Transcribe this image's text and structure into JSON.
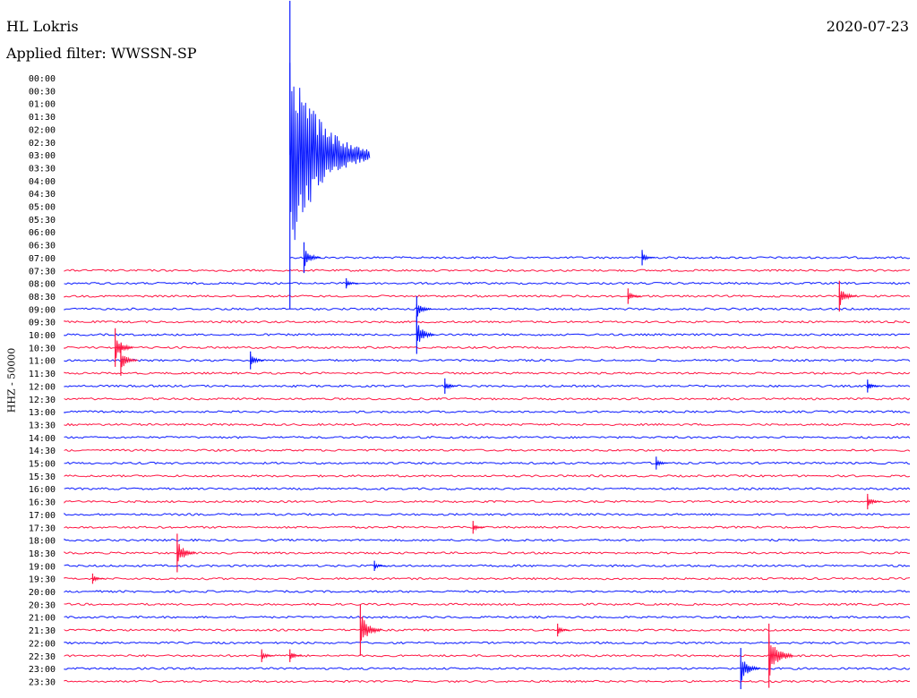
{
  "header": {
    "station": "HL Lokris",
    "date": "2020-07-23",
    "filter": "Applied filter: WWSSN-SP"
  },
  "axis": {
    "ylabel": "HHZ - 50000"
  },
  "colors": {
    "trace_a": "#ff1744",
    "trace_b": "#0a1aff"
  },
  "chart_data": {
    "type": "line",
    "time_labels": [
      "00:00",
      "00:30",
      "01:00",
      "01:30",
      "02:00",
      "02:30",
      "03:00",
      "03:30",
      "04:00",
      "04:30",
      "05:00",
      "05:30",
      "06:00",
      "06:30",
      "07:00",
      "07:30",
      "08:00",
      "08:30",
      "09:00",
      "09:30",
      "10:00",
      "10:30",
      "11:00",
      "11:30",
      "12:00",
      "12:30",
      "13:00",
      "13:30",
      "14:00",
      "14:30",
      "15:00",
      "15:30",
      "16:00",
      "16:30",
      "17:00",
      "17:30",
      "18:00",
      "18:30",
      "19:00",
      "19:30",
      "20:00",
      "20:30",
      "21:00",
      "21:30",
      "22:00",
      "22:30",
      "23:00",
      "23:30"
    ],
    "first_trace_label": "07:00",
    "events": [
      {
        "t": "03:00",
        "minute": 8,
        "amp": 12,
        "color": "b"
      },
      {
        "t": "07:00",
        "minute": 8.5,
        "amp": 1.2,
        "color": "b"
      },
      {
        "t": "07:00",
        "minute": 20.5,
        "amp": 0.6,
        "color": "b"
      },
      {
        "t": "08:00",
        "minute": 10,
        "amp": 0.4,
        "color": "b"
      },
      {
        "t": "08:30",
        "minute": 20,
        "amp": 0.6,
        "color": "a"
      },
      {
        "t": "08:30",
        "minute": 27.5,
        "amp": 1.2,
        "color": "a"
      },
      {
        "t": "09:00",
        "minute": 12.5,
        "amp": 1.0,
        "color": "b"
      },
      {
        "t": "10:00",
        "minute": 12.5,
        "amp": 1.5,
        "color": "b"
      },
      {
        "t": "10:30",
        "minute": 1.8,
        "amp": 1.5,
        "color": "a"
      },
      {
        "t": "11:00",
        "minute": 6.6,
        "amp": 0.7,
        "color": "b"
      },
      {
        "t": "11:00",
        "minute": 2.0,
        "amp": 1.2,
        "color": "a"
      },
      {
        "t": "12:00",
        "minute": 13.5,
        "amp": 0.6,
        "color": "b"
      },
      {
        "t": "12:00",
        "minute": 28.5,
        "amp": 0.5,
        "color": "b"
      },
      {
        "t": "15:00",
        "minute": 21,
        "amp": 0.5,
        "color": "b"
      },
      {
        "t": "16:30",
        "minute": 28.5,
        "amp": 0.6,
        "color": "a"
      },
      {
        "t": "17:30",
        "minute": 14.5,
        "amp": 0.5,
        "color": "a"
      },
      {
        "t": "18:30",
        "minute": 4.0,
        "amp": 1.5,
        "color": "a"
      },
      {
        "t": "19:00",
        "minute": 11.0,
        "amp": 0.4,
        "color": "b"
      },
      {
        "t": "19:30",
        "minute": 1.0,
        "amp": 0.4,
        "color": "a"
      },
      {
        "t": "21:30",
        "minute": 10.5,
        "amp": 2.0,
        "color": "a"
      },
      {
        "t": "21:30",
        "minute": 17.5,
        "amp": 0.5,
        "color": "a"
      },
      {
        "t": "22:30",
        "minute": 7.0,
        "amp": 0.5,
        "color": "a"
      },
      {
        "t": "22:30",
        "minute": 8.0,
        "amp": 0.5,
        "color": "a"
      },
      {
        "t": "22:30",
        "minute": 25.0,
        "amp": 2.5,
        "color": "a"
      },
      {
        "t": "23:00",
        "minute": 24.0,
        "amp": 1.6,
        "color": "b"
      }
    ],
    "xlim": [
      0,
      30
    ],
    "xlabel": "",
    "ylabel": "HHZ - 50000"
  }
}
